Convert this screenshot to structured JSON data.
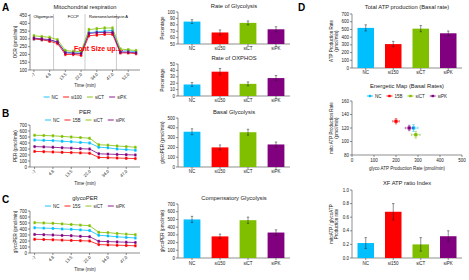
{
  "chart_data": [
    {
      "type": "line",
      "panel_label": "A",
      "title": "Mitochondrial respiration",
      "xlabel": "Time (min)",
      "ylabel": "OCR (pmol/min)",
      "categories": [
        "-7",
        null,
        "4.8",
        null,
        "13.5",
        null,
        "22.0",
        null,
        "34.0",
        null,
        "47.0",
        null,
        "52.0",
        null
      ],
      "series": [
        {
          "name": "NC",
          "color": "#00bfff",
          "values": [
            300,
            295,
            290,
            280,
            215,
            210,
            210,
            340,
            345,
            350,
            355,
            220,
            225,
            215
          ]
        },
        {
          "name": "si100",
          "color": "#ff0000",
          "values": [
            300,
            295,
            285,
            270,
            200,
            200,
            195,
            320,
            325,
            330,
            330,
            210,
            210,
            205
          ]
        },
        {
          "name": "siCT",
          "color": "#7fbf00",
          "values": [
            320,
            315,
            310,
            295,
            225,
            220,
            218,
            360,
            365,
            370,
            370,
            235,
            230,
            225
          ]
        },
        {
          "name": "siPK",
          "color": "#800080",
          "values": [
            305,
            300,
            295,
            280,
            210,
            208,
            205,
            335,
            340,
            342,
            342,
            215,
            215,
            210
          ]
        }
      ],
      "error": 8,
      "marker": "circle",
      "ylim": [
        100,
        460
      ],
      "yticks": [
        100,
        150,
        200,
        250,
        300,
        350,
        400,
        450
      ],
      "vlines": [
        2.5,
        6.5,
        10.5
      ],
      "annotations": [
        {
          "text": "Oligomycin",
          "x": 1.2,
          "y": 453
        },
        {
          "text": "FCCP",
          "x": 5.0,
          "y": 453
        },
        {
          "text": "Rotenone/antimycin A",
          "x": 9.5,
          "y": 453
        },
        {
          "text": "Font Size up....",
          "color": "#ff0000"
        }
      ],
      "legend": "bottom"
    },
    {
      "type": "bar",
      "title": "Rate of Glycolysis",
      "ylabel": "Percentage",
      "categories": [
        "NC",
        "si150",
        "siCT",
        "siPK"
      ],
      "values": [
        85,
        68,
        83,
        73
      ],
      "errors": [
        3,
        4,
        3,
        4
      ],
      "colors": [
        "#00bfff",
        "#ff0000",
        "#7fbf00",
        "#800080"
      ],
      "ylim": [
        50,
        100
      ],
      "yticks": [
        50,
        60,
        70,
        80,
        90,
        100
      ]
    },
    {
      "type": "bar",
      "title": "Rate of OXPHOS",
      "ylabel": "Percentage",
      "categories": [
        "NC",
        "si150",
        "siCT",
        "siPK"
      ],
      "values": [
        18,
        38,
        19,
        28
      ],
      "errors": [
        3,
        5,
        3,
        4
      ],
      "colors": [
        "#00bfff",
        "#ff0000",
        "#7fbf00",
        "#800080"
      ],
      "ylim": [
        0,
        50
      ],
      "yticks": [
        0,
        10,
        20,
        30,
        40,
        50
      ]
    },
    {
      "type": "line",
      "panel_label": "B",
      "title": "PER",
      "xlabel": "Time (min)",
      "ylabel": "PER (pmol/min)",
      "categories": [
        "-7",
        null,
        "4.8",
        null,
        "13.5",
        null,
        "22.0",
        null,
        "34.0",
        null,
        "47.0",
        null
      ],
      "series": [
        {
          "name": "NC",
          "color": "#00bfff",
          "values": [
            450,
            445,
            440,
            430,
            420,
            410,
            400,
            330,
            320,
            300,
            290,
            280
          ]
        },
        {
          "name": "15B",
          "color": "#ff0000",
          "values": [
            260,
            255,
            250,
            245,
            240,
            235,
            230,
            160,
            155,
            150,
            145,
            140
          ]
        },
        {
          "name": "siCT",
          "color": "#7fbf00",
          "values": [
            530,
            525,
            520,
            510,
            500,
            490,
            480,
            370,
            365,
            350,
            340,
            330
          ]
        },
        {
          "name": "siPK",
          "color": "#800080",
          "values": [
            340,
            335,
            330,
            320,
            315,
            305,
            300,
            220,
            215,
            210,
            205,
            200
          ]
        }
      ],
      "error": 18,
      "marker": "circle",
      "ylim": [
        0,
        700
      ],
      "yticks": [
        0,
        100,
        200,
        300,
        400,
        500,
        600,
        700
      ],
      "legend": "top"
    },
    {
      "type": "bar",
      "title": "Basal Glycolysis",
      "ylabel": "glycoPER (pmol/min)",
      "categories": [
        "NC",
        "si150",
        "siCT",
        "siPK"
      ],
      "values": [
        360,
        200,
        355,
        230
      ],
      "errors": [
        30,
        25,
        30,
        25
      ],
      "colors": [
        "#00bfff",
        "#ff0000",
        "#7fbf00",
        "#800080"
      ],
      "ylim": [
        0,
        500
      ],
      "yticks": [
        0,
        100,
        200,
        300,
        400,
        500
      ]
    },
    {
      "type": "line",
      "panel_label": "C",
      "title": "glycoPER",
      "xlabel": "Time (min)",
      "ylabel": "glycoPER (pmol/min)",
      "categories": [
        "-7",
        null,
        "4.8",
        null,
        "13.5",
        null,
        "22.0",
        null,
        "34.0",
        null,
        "47.0",
        null
      ],
      "series": [
        {
          "name": "NC",
          "color": "#00bfff",
          "values": [
            420,
            415,
            410,
            400,
            395,
            385,
            375,
            295,
            285,
            270,
            260,
            250
          ]
        },
        {
          "name": "15S",
          "color": "#ff0000",
          "values": [
            230,
            225,
            220,
            215,
            210,
            205,
            200,
            140,
            135,
            130,
            125,
            120
          ]
        },
        {
          "name": "siCT",
          "color": "#7fbf00",
          "values": [
            505,
            500,
            495,
            485,
            475,
            465,
            455,
            345,
            340,
            325,
            315,
            305
          ]
        },
        {
          "name": "siPK",
          "color": "#800080",
          "values": [
            310,
            305,
            300,
            293,
            288,
            278,
            272,
            195,
            190,
            185,
            180,
            175
          ]
        }
      ],
      "error": 18,
      "marker": "circle",
      "ylim": [
        0,
        700
      ],
      "yticks": [
        0,
        100,
        200,
        300,
        400,
        500,
        600,
        700
      ],
      "legend": "top"
    },
    {
      "type": "bar",
      "title": "Compensatory Glycolysis",
      "ylabel": "glycoPER (pmol/min)",
      "categories": [
        "NC",
        "si150",
        "siCT",
        "siPK"
      ],
      "values": [
        500,
        280,
        490,
        330
      ],
      "errors": [
        40,
        30,
        40,
        35
      ],
      "colors": [
        "#00bfff",
        "#ff0000",
        "#7fbf00",
        "#800080"
      ],
      "ylim": [
        0,
        700
      ],
      "yticks": [
        0,
        100,
        200,
        300,
        400,
        500,
        600,
        700
      ]
    },
    {
      "type": "bar",
      "panel_label": "D",
      "title": "Total ATP production (Basal rate)",
      "ylabel": "ATP Production Rate\n(pmol/min)",
      "categories": [
        "NC",
        "si150",
        "siCT",
        "siPK"
      ],
      "values": [
        520,
        310,
        510,
        450
      ],
      "errors": [
        40,
        35,
        40,
        30
      ],
      "colors": [
        "#00bfff",
        "#ff0000",
        "#7fbf00",
        "#800080"
      ],
      "ylim": [
        0,
        700
      ],
      "yticks": [
        0,
        100,
        200,
        300,
        400,
        500,
        600,
        700
      ]
    },
    {
      "type": "scatter",
      "title": "Energetic Map (Basal Rates)",
      "xlabel": "glyco ATP Production Rate (pmol/min)",
      "ylabel": "mito ATP Production Rate\n(pmol/min)",
      "series": [
        {
          "name": "NC",
          "color": "#00bfff",
          "x": [
            280
          ],
          "values": [
            120
          ],
          "x_errors": [
            20
          ],
          "errors": [
            5
          ]
        },
        {
          "name": "15B",
          "color": "#ff0000",
          "x": [
            200
          ],
          "values": [
            130
          ],
          "x_errors": [
            15
          ],
          "errors": [
            4
          ]
        },
        {
          "name": "siCT",
          "color": "#7fbf00",
          "x": [
            290
          ],
          "values": [
            110
          ],
          "x_errors": [
            20
          ],
          "errors": [
            5
          ]
        },
        {
          "name": "siPK",
          "color": "#800080",
          "x": [
            260
          ],
          "values": [
            120
          ],
          "x_errors": [
            18
          ],
          "errors": [
            4
          ]
        }
      ],
      "marker": "square",
      "xlim": [
        0,
        500
      ],
      "xticks": [
        0,
        100,
        200,
        300,
        400,
        500
      ],
      "ylim": [
        80,
        160
      ],
      "yticks": [
        80,
        100,
        120,
        140,
        160
      ],
      "legend": "top"
    },
    {
      "type": "bar",
      "title": "XF ATP ratio Index",
      "ylabel": "mitoATP / glycoATP\nProduction rate",
      "categories": [
        "NC",
        "si150",
        "siCT",
        "siPK"
      ],
      "values": [
        0.22,
        0.68,
        0.2,
        0.32
      ],
      "errors": [
        0.08,
        0.12,
        0.1,
        0.08
      ],
      "colors": [
        "#00bfff",
        "#ff0000",
        "#7fbf00",
        "#800080"
      ],
      "ylim": [
        0,
        1.0
      ],
      "yticks": [
        {
          "value": 0,
          "label": "0.0"
        },
        0.2,
        0.4,
        0.6,
        0.8,
        {
          "value": 1.0,
          "label": "1.0"
        }
      ]
    }
  ]
}
